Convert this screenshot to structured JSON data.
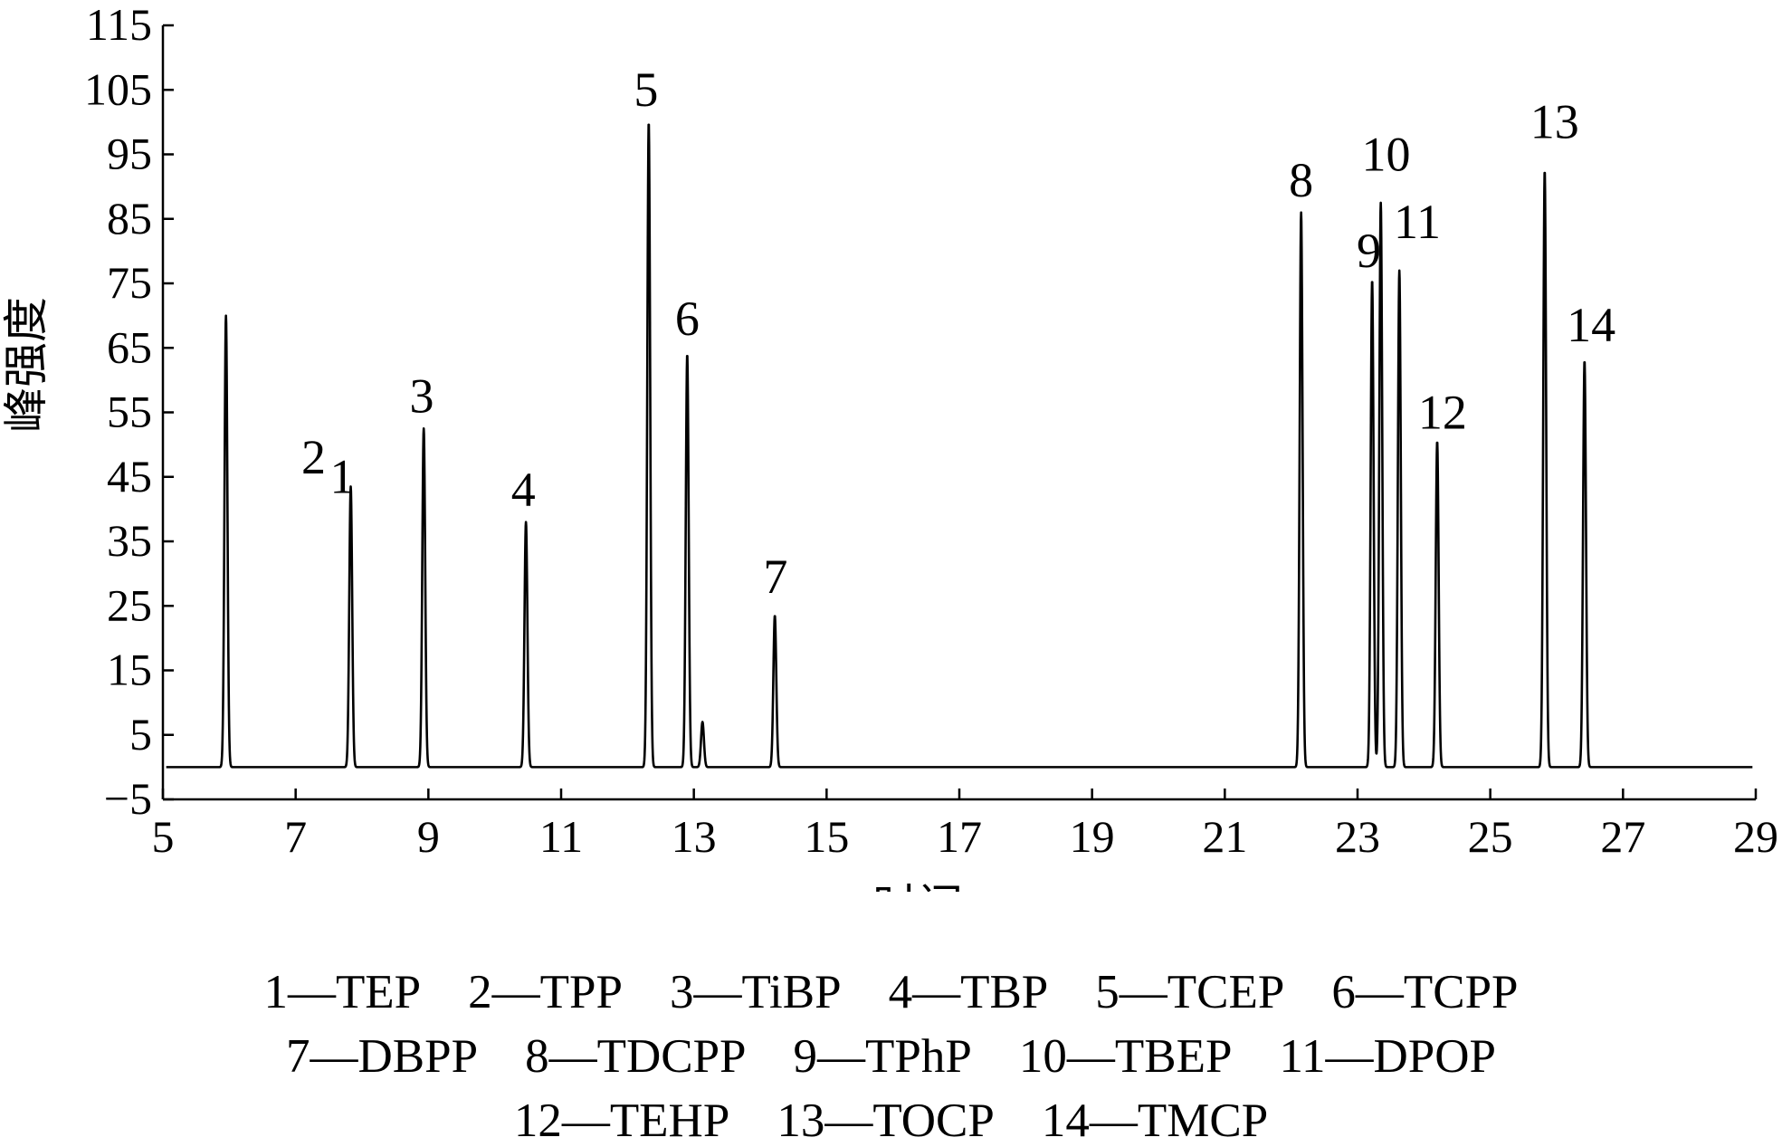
{
  "chart_data": {
    "type": "line",
    "xlabel": "时间/min",
    "ylabel": "峰强度",
    "xlim": [
      5,
      29
    ],
    "ylim": [
      -5,
      115
    ],
    "x_ticks": [
      "5",
      "7",
      "9",
      "11",
      "13",
      "15",
      "17",
      "19",
      "21",
      "23",
      "25",
      "27",
      "29"
    ],
    "y_ticks": [
      "−5",
      "5",
      "15",
      "25",
      "35",
      "45",
      "55",
      "65",
      "75",
      "85",
      "95",
      "105",
      "115"
    ],
    "baseline": 0,
    "line_color": "#000000",
    "peaks": [
      {
        "x": 5.95,
        "y": 70
      },
      {
        "x": 7.83,
        "y": 43.5
      },
      {
        "x": 8.93,
        "y": 52.5
      },
      {
        "x": 10.47,
        "y": 38
      },
      {
        "x": 12.32,
        "y": 100
      },
      {
        "x": 12.9,
        "y": 64
      },
      {
        "x": 13.13,
        "y": 7
      },
      {
        "x": 14.22,
        "y": 23.5
      },
      {
        "x": 22.15,
        "y": 86
      },
      {
        "x": 23.22,
        "y": 75.5
      },
      {
        "x": 23.35,
        "y": 87.5
      },
      {
        "x": 23.63,
        "y": 77
      },
      {
        "x": 24.2,
        "y": 50.5
      },
      {
        "x": 25.82,
        "y": 92.5
      },
      {
        "x": 26.42,
        "y": 63
      }
    ],
    "peak_labels": [
      {
        "text": "1",
        "x": 7.7,
        "y": 42.5
      },
      {
        "text": "2",
        "x": 7.27,
        "y": 45.5
      },
      {
        "text": "3",
        "x": 8.9,
        "y": 55
      },
      {
        "text": "4",
        "x": 10.43,
        "y": 40.5
      },
      {
        "text": "5",
        "x": 12.28,
        "y": 102.5
      },
      {
        "text": "6",
        "x": 12.9,
        "y": 67
      },
      {
        "text": "7",
        "x": 14.23,
        "y": 27
      },
      {
        "text": "8",
        "x": 22.15,
        "y": 88.5
      },
      {
        "text": "9",
        "x": 23.17,
        "y": 77.5
      },
      {
        "text": "10",
        "x": 23.43,
        "y": 92.5
      },
      {
        "text": "11",
        "x": 23.9,
        "y": 82
      },
      {
        "text": "12",
        "x": 24.28,
        "y": 52.5
      },
      {
        "text": "13",
        "x": 25.97,
        "y": 97.5
      },
      {
        "text": "14",
        "x": 26.52,
        "y": 66
      }
    ]
  },
  "legend": [
    [
      "1—TEP",
      "2—TPP",
      "3—TiBP",
      "4—TBP",
      "5—TCEP",
      "6—TCPP"
    ],
    [
      "7—DBPP",
      "8—TDCPP",
      "9—TPhP",
      "10—TBEP",
      "11—DPOP"
    ],
    [
      "12—TEHP",
      "13—TOCP",
      "14—TMCP"
    ]
  ]
}
